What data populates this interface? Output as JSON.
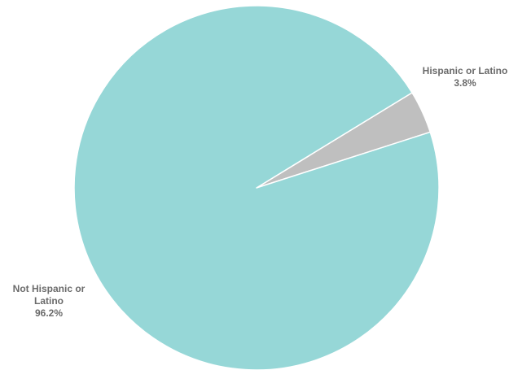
{
  "chart_data": {
    "type": "pie",
    "categories": [
      "Hispanic or Latino",
      "Not Hispanic or Latino"
    ],
    "values": [
      3.8,
      96.2
    ],
    "value_labels": [
      "3.8%",
      "96.2%"
    ],
    "label_lines": [
      [
        "Hispanic or Latino"
      ],
      [
        "Not Hispanic or",
        "Latino"
      ]
    ],
    "colors": [
      "#bfbfbf",
      "#96d7d7"
    ],
    "title": "",
    "legend": "none"
  }
}
